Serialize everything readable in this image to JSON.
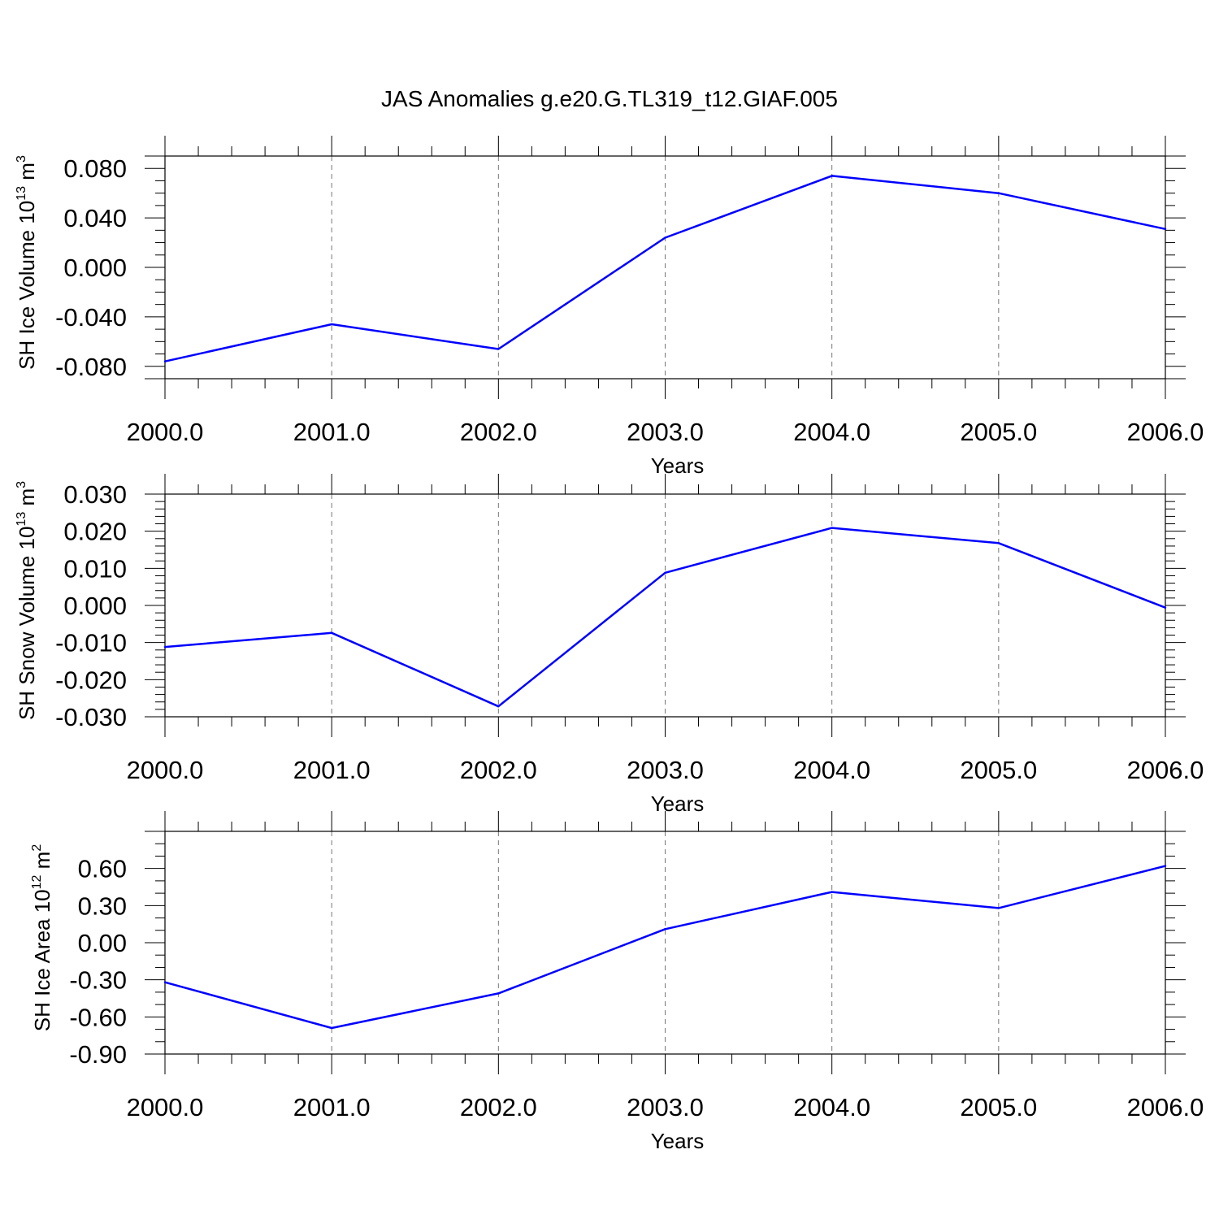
{
  "title": "JAS Anomalies g.e20.G.TL319_t12.GIAF.005",
  "colors": {
    "series": "#0000ff",
    "axis": "#000000",
    "grid": "#777777"
  },
  "chart_data": [
    {
      "type": "line",
      "ylabel_main": "SH Ice Volume 10",
      "ylabel_exp": "13",
      "ylabel_unit": " m",
      "ylabel_unit_exp": "3",
      "xlabel": "Years",
      "x": [
        2000,
        2001,
        2002,
        2003,
        2004,
        2005,
        2006
      ],
      "values": [
        -0.076,
        -0.046,
        -0.066,
        0.024,
        0.074,
        0.06,
        0.031
      ],
      "xlim": [
        2000,
        2006
      ],
      "ylim": [
        -0.09,
        0.09
      ],
      "xticks": [
        2000,
        2001,
        2002,
        2003,
        2004,
        2005,
        2006
      ],
      "xtick_labels": [
        "2000.0",
        "2001.0",
        "2002.0",
        "2003.0",
        "2004.0",
        "2005.0",
        "2006.0"
      ],
      "yticks": [
        0.08,
        0.04,
        0.0,
        -0.04,
        -0.08
      ],
      "ytick_labels": [
        "0.080",
        "0.040",
        "0.000",
        "-0.040",
        "-0.080"
      ],
      "yminor_step": 0.01,
      "grid": "vertical dashed"
    },
    {
      "type": "line",
      "ylabel_main": "SH Snow Volume 10",
      "ylabel_exp": "13",
      "ylabel_unit": " m",
      "ylabel_unit_exp": "3",
      "xlabel": "Years",
      "x": [
        2000,
        2001,
        2002,
        2003,
        2004,
        2005,
        2006
      ],
      "values": [
        -0.0112,
        -0.0074,
        -0.0272,
        0.0088,
        0.0209,
        0.0168,
        -0.0006
      ],
      "xlim": [
        2000,
        2006
      ],
      "ylim": [
        -0.03,
        0.03
      ],
      "xticks": [
        2000,
        2001,
        2002,
        2003,
        2004,
        2005,
        2006
      ],
      "xtick_labels": [
        "2000.0",
        "2001.0",
        "2002.0",
        "2003.0",
        "2004.0",
        "2005.0",
        "2006.0"
      ],
      "yticks": [
        0.03,
        0.02,
        0.01,
        0.0,
        -0.01,
        -0.02,
        -0.03
      ],
      "ytick_labels": [
        "0.030",
        "0.020",
        "0.010",
        "0.000",
        "-0.010",
        "-0.020",
        "-0.030"
      ],
      "yminor_step": 0.002,
      "grid": "vertical dashed"
    },
    {
      "type": "line",
      "ylabel_main": "SH Ice Area 10",
      "ylabel_exp": "12",
      "ylabel_unit": " m",
      "ylabel_unit_exp": "2",
      "xlabel": "Years",
      "x": [
        2000,
        2001,
        2002,
        2003,
        2004,
        2005,
        2006
      ],
      "values": [
        -0.32,
        -0.69,
        -0.41,
        0.11,
        0.41,
        0.28,
        0.62
      ],
      "xlim": [
        2000,
        2006
      ],
      "ylim": [
        -0.9,
        0.9
      ],
      "xticks": [
        2000,
        2001,
        2002,
        2003,
        2004,
        2005,
        2006
      ],
      "xtick_labels": [
        "2000.0",
        "2001.0",
        "2002.0",
        "2003.0",
        "2004.0",
        "2005.0",
        "2006.0"
      ],
      "yticks": [
        0.6,
        0.3,
        0.0,
        -0.3,
        -0.6,
        -0.9
      ],
      "ytick_labels": [
        "0.60",
        "0.30",
        "0.00",
        "-0.30",
        "-0.60",
        "-0.90"
      ],
      "yminor_step": 0.1,
      "grid": "vertical dashed"
    }
  ]
}
